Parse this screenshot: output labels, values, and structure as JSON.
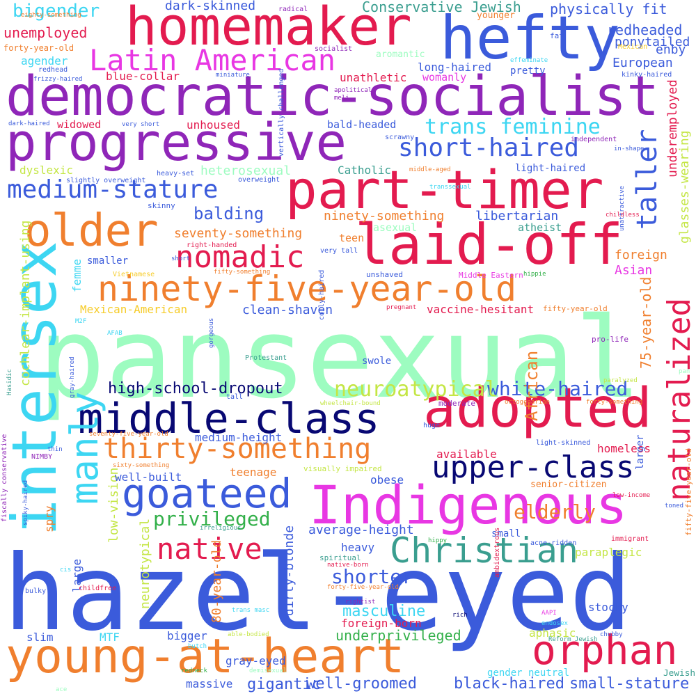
{
  "colors": {
    "blue": "#3b5bdb",
    "purple": "#8f26b8",
    "red": "#e31b4f",
    "orange": "#f07f2e",
    "magenta": "#e837e3",
    "mint": "#9dfcc0",
    "cyan": "#3dd6f2",
    "navy": "#080873",
    "green": "#33b04a",
    "teal": "#3a9e8f",
    "lime": "#c4e645",
    "yellow": "#f6cc2a",
    "pink": "#f07aa6"
  },
  "words": [
    {
      "text": "pansexual",
      "color": "mint"
    },
    {
      "text": "hazel-eyed",
      "color": "blue"
    },
    {
      "text": "democratic-socialist",
      "color": "purple"
    },
    {
      "text": "progressive",
      "color": "purple"
    },
    {
      "text": "homemaker",
      "color": "red"
    },
    {
      "text": "hefty",
      "color": "blue"
    },
    {
      "text": "young-at-heart",
      "color": "orange"
    },
    {
      "text": "intersex",
      "color": "cyan"
    },
    {
      "text": "part-timer",
      "color": "red"
    },
    {
      "text": "laid-off",
      "color": "red"
    },
    {
      "text": "adopted",
      "color": "red"
    },
    {
      "text": "Indigenous",
      "color": "magenta"
    },
    {
      "text": "middle-class",
      "color": "navy"
    },
    {
      "text": "older",
      "color": "orange"
    },
    {
      "text": "ninety-five-year-old",
      "color": "orange"
    },
    {
      "text": "naturalized",
      "color": "red"
    },
    {
      "text": "manly",
      "color": "cyan"
    },
    {
      "text": "goateed",
      "color": "blue"
    },
    {
      "text": "Christian",
      "color": "teal"
    },
    {
      "text": "orphan",
      "color": "red"
    },
    {
      "text": "Latin American",
      "color": "magenta"
    },
    {
      "text": "upper-class",
      "color": "navy"
    },
    {
      "text": "thirty-something",
      "color": "orange"
    },
    {
      "text": "nomadic",
      "color": "red"
    },
    {
      "text": "medium-stature",
      "color": "blue"
    },
    {
      "text": "short-haired",
      "color": "blue"
    },
    {
      "text": "taller",
      "color": "blue"
    },
    {
      "text": "native",
      "color": "red"
    },
    {
      "text": "trans feminine",
      "color": "cyan"
    },
    {
      "text": "white-haired",
      "color": "blue"
    },
    {
      "text": "neuroatypical",
      "color": "lime"
    },
    {
      "text": "privileged",
      "color": "green"
    },
    {
      "text": "elderly",
      "color": "orange"
    },
    {
      "text": "shorter",
      "color": "blue"
    },
    {
      "text": "high-school-dropout",
      "color": "navy"
    },
    {
      "text": "balding",
      "color": "blue"
    },
    {
      "text": "well-groomed",
      "color": "blue"
    },
    {
      "text": "black-haired",
      "color": "blue"
    },
    {
      "text": "small-stature",
      "color": "blue"
    },
    {
      "text": "gigantic",
      "color": "blue"
    },
    {
      "text": "masculine",
      "color": "cyan"
    },
    {
      "text": "underprivileged",
      "color": "green"
    },
    {
      "text": "African",
      "color": "orange"
    },
    {
      "text": "unemployed",
      "color": "red"
    },
    {
      "text": "bigender",
      "color": "cyan"
    },
    {
      "text": "Conservative Jewish",
      "color": "teal"
    },
    {
      "text": "physically fit",
      "color": "blue"
    },
    {
      "text": "dark-skinned",
      "color": "blue"
    },
    {
      "text": "redheaded",
      "color": "blue"
    },
    {
      "text": "ponytailed",
      "color": "blue"
    },
    {
      "text": "enby",
      "color": "blue"
    },
    {
      "text": "European",
      "color": "blue"
    },
    {
      "text": "Asian",
      "color": "magenta"
    },
    {
      "text": "foreign",
      "color": "orange"
    },
    {
      "text": "glasses-wearing",
      "color": "lime"
    },
    {
      "text": "underemployed",
      "color": "red"
    },
    {
      "text": "75-year-old",
      "color": "orange"
    },
    {
      "text": "cochlear-implant-using",
      "color": "lime"
    },
    {
      "text": "dirty-blonde",
      "color": "blue"
    },
    {
      "text": "80-year-old",
      "color": "orange"
    },
    {
      "text": "neurotypical",
      "color": "lime"
    },
    {
      "text": "low-vision",
      "color": "lime"
    },
    {
      "text": "seventy-something",
      "color": "orange"
    },
    {
      "text": "ninety-something",
      "color": "orange"
    },
    {
      "text": "libertarian",
      "color": "blue"
    },
    {
      "text": "heterosexual",
      "color": "mint"
    },
    {
      "text": "Catholic",
      "color": "teal"
    },
    {
      "text": "clean-shaven",
      "color": "blue"
    },
    {
      "text": "vaccine-hesitant",
      "color": "red"
    },
    {
      "text": "Mexican-American",
      "color": "yellow"
    },
    {
      "text": "dyslexic",
      "color": "lime"
    },
    {
      "text": "femme",
      "color": "cyan"
    },
    {
      "text": "medium-height",
      "color": "blue"
    },
    {
      "text": "available",
      "color": "red"
    },
    {
      "text": "homeless",
      "color": "red"
    },
    {
      "text": "well-built",
      "color": "blue"
    },
    {
      "text": "teenage",
      "color": "orange"
    },
    {
      "text": "obese",
      "color": "blue"
    },
    {
      "text": "average-height",
      "color": "blue"
    },
    {
      "text": "heavy",
      "color": "blue"
    },
    {
      "text": "spry",
      "color": "orange"
    },
    {
      "text": "large",
      "color": "blue"
    },
    {
      "text": "slim",
      "color": "blue"
    },
    {
      "text": "MTF",
      "color": "cyan"
    },
    {
      "text": "bigger",
      "color": "blue"
    },
    {
      "text": "gray-eyed",
      "color": "blue"
    },
    {
      "text": "massive",
      "color": "blue"
    },
    {
      "text": "foreign-born",
      "color": "red"
    },
    {
      "text": "stocky",
      "color": "blue"
    },
    {
      "text": "aphasic",
      "color": "lime"
    },
    {
      "text": "gender neutral",
      "color": "cyan"
    },
    {
      "text": "Jewish",
      "color": "teal"
    },
    {
      "text": "paraplegic",
      "color": "lime"
    },
    {
      "text": "larger",
      "color": "blue"
    },
    {
      "text": "senior-citizen",
      "color": "orange"
    },
    {
      "text": "small",
      "color": "blue"
    },
    {
      "text": "swole",
      "color": "blue"
    },
    {
      "text": "agender",
      "color": "cyan"
    },
    {
      "text": "forty-year-old",
      "color": "orange"
    },
    {
      "text": "long-haired",
      "color": "blue"
    },
    {
      "text": "pretty",
      "color": "blue"
    },
    {
      "text": "womanly",
      "color": "magenta"
    },
    {
      "text": "blue-collar",
      "color": "red"
    },
    {
      "text": "unathletic",
      "color": "red"
    },
    {
      "text": "aromantic",
      "color": "mint"
    },
    {
      "text": "widowed",
      "color": "red"
    },
    {
      "text": "unhoused",
      "color": "red"
    },
    {
      "text": "bald-headed",
      "color": "blue"
    },
    {
      "text": "asexual",
      "color": "mint"
    },
    {
      "text": "atheist",
      "color": "teal"
    },
    {
      "text": "teen",
      "color": "orange"
    },
    {
      "text": "light-haired",
      "color": "blue"
    },
    {
      "text": "younger",
      "color": "orange"
    },
    {
      "text": "smaller",
      "color": "blue"
    },
    {
      "text": "skinny",
      "color": "blue"
    },
    {
      "text": "kinky-haired",
      "color": "blue"
    },
    {
      "text": "effeminate",
      "color": "cyan"
    },
    {
      "text": "Mexican",
      "color": "yellow"
    },
    {
      "text": "fat",
      "color": "blue"
    },
    {
      "text": "radical",
      "color": "purple"
    },
    {
      "text": "socialist",
      "color": "purple"
    },
    {
      "text": "eighty-something",
      "color": "orange"
    },
    {
      "text": "redhead",
      "color": "blue"
    },
    {
      "text": "frizzy-haired",
      "color": "blue"
    },
    {
      "text": "miniature",
      "color": "blue"
    },
    {
      "text": "apolitical",
      "color": "purple"
    },
    {
      "text": "meli",
      "color": "purple"
    },
    {
      "text": "dark-haired",
      "color": "blue"
    },
    {
      "text": "very short",
      "color": "blue"
    },
    {
      "text": "scrawny",
      "color": "blue"
    },
    {
      "text": "independent",
      "color": "purple"
    },
    {
      "text": "in-shape",
      "color": "blue"
    },
    {
      "text": "vertically challenged",
      "color": "blue"
    },
    {
      "text": "slightly overweight",
      "color": "blue"
    },
    {
      "text": "overweight",
      "color": "blue"
    },
    {
      "text": "heavy-set",
      "color": "blue"
    },
    {
      "text": "middle-aged",
      "color": "orange"
    },
    {
      "text": "transsexual",
      "color": "cyan"
    },
    {
      "text": "unattractive",
      "color": "blue"
    },
    {
      "text": "childless",
      "color": "red"
    },
    {
      "text": "right-handed",
      "color": "red"
    },
    {
      "text": "short",
      "color": "blue"
    },
    {
      "text": "very tall",
      "color": "blue"
    },
    {
      "text": "Vietnamese",
      "color": "yellow"
    },
    {
      "text": "fifty-something",
      "color": "orange"
    },
    {
      "text": "unshaved",
      "color": "blue"
    },
    {
      "text": "Middle Eastern",
      "color": "magenta"
    },
    {
      "text": "hippie",
      "color": "green"
    },
    {
      "text": "M2F",
      "color": "cyan"
    },
    {
      "text": "pregnant",
      "color": "red"
    },
    {
      "text": "fifty-year-old",
      "color": "orange"
    },
    {
      "text": "AFAB",
      "color": "cyan"
    },
    {
      "text": "pro-life",
      "color": "purple"
    },
    {
      "text": "Protestant",
      "color": "teal"
    },
    {
      "text": "gorgeous",
      "color": "blue"
    },
    {
      "text": "coily-haired",
      "color": "blue"
    },
    {
      "text": "tall",
      "color": "blue"
    },
    {
      "text": "paralyzed",
      "color": "lime"
    },
    {
      "text": "pan",
      "color": "mint"
    },
    {
      "text": "wheelchair-bound",
      "color": "lime"
    },
    {
      "text": "moderate",
      "color": "purple"
    },
    {
      "text": "octogenarian",
      "color": "orange"
    },
    {
      "text": "forty-something",
      "color": "orange"
    },
    {
      "text": "Hasidic",
      "color": "teal"
    },
    {
      "text": "gray-haired",
      "color": "blue"
    },
    {
      "text": "seventy-five-year-old",
      "color": "orange"
    },
    {
      "text": "huge",
      "color": "blue"
    },
    {
      "text": "light-skinned",
      "color": "blue"
    },
    {
      "text": "NIMBY",
      "color": "purple"
    },
    {
      "text": "thin",
      "color": "blue"
    },
    {
      "text": "sixty-something",
      "color": "orange"
    },
    {
      "text": "visually impaired",
      "color": "lime"
    },
    {
      "text": "low-income",
      "color": "red"
    },
    {
      "text": "toned",
      "color": "blue"
    },
    {
      "text": "irreligious",
      "color": "teal"
    },
    {
      "text": "hippy",
      "color": "green"
    },
    {
      "text": "acne-ridden",
      "color": "blue"
    },
    {
      "text": "immigrant",
      "color": "red"
    },
    {
      "text": "spiky-haired",
      "color": "blue"
    },
    {
      "text": "fiscally conservative",
      "color": "purple"
    },
    {
      "text": "spiritual",
      "color": "teal"
    },
    {
      "text": "native-born",
      "color": "red"
    },
    {
      "text": "cis",
      "color": "cyan"
    },
    {
      "text": "forty-five-year-old",
      "color": "orange"
    },
    {
      "text": "childfree",
      "color": "red"
    },
    {
      "text": "rightist",
      "color": "purple"
    },
    {
      "text": "bulky",
      "color": "blue"
    },
    {
      "text": "trans masc",
      "color": "cyan"
    },
    {
      "text": "rich",
      "color": "navy"
    },
    {
      "text": "AAPI",
      "color": "magenta"
    },
    {
      "text": "endosex",
      "color": "cyan"
    },
    {
      "text": "ambidextrous",
      "color": "red"
    },
    {
      "text": "fifty-five-year-old",
      "color": "orange"
    },
    {
      "text": "able-bodied",
      "color": "lime"
    },
    {
      "text": "butch",
      "color": "cyan"
    },
    {
      "text": "Reform Jewish",
      "color": "teal"
    },
    {
      "text": "chubby",
      "color": "blue"
    },
    {
      "text": "redneck",
      "color": "green"
    },
    {
      "text": "demisexual",
      "color": "mint"
    },
    {
      "text": "ace",
      "color": "mint"
    }
  ]
}
